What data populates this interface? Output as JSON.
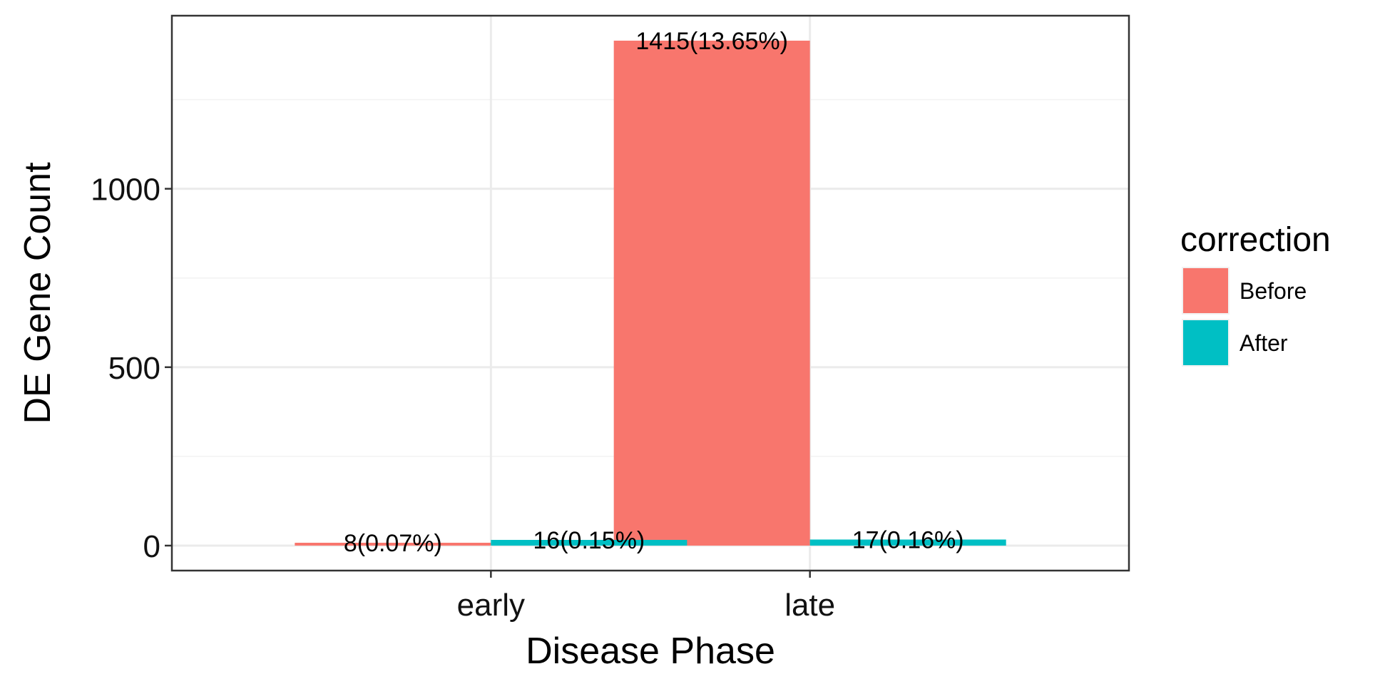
{
  "chart_data": {
    "type": "bar",
    "categories": [
      "early",
      "late"
    ],
    "series": [
      {
        "name": "Before",
        "color": "#F8766D",
        "values": [
          8,
          1415
        ],
        "labels": [
          "8(0.07%)",
          "1415(13.65%)"
        ]
      },
      {
        "name": "After",
        "color": "#00BFC4",
        "values": [
          16,
          17
        ],
        "labels": [
          "16(0.15%)",
          "17(0.16%)"
        ]
      }
    ],
    "xlabel": "Disease Phase",
    "ylabel": "DE Gene Count",
    "ylim": [
      -70,
      1485
    ],
    "yticks": [
      0,
      500,
      1000
    ],
    "yticks_minor": [
      250,
      750,
      1250
    ],
    "grid": true,
    "legend": {
      "title": "correction",
      "position": "right"
    }
  }
}
